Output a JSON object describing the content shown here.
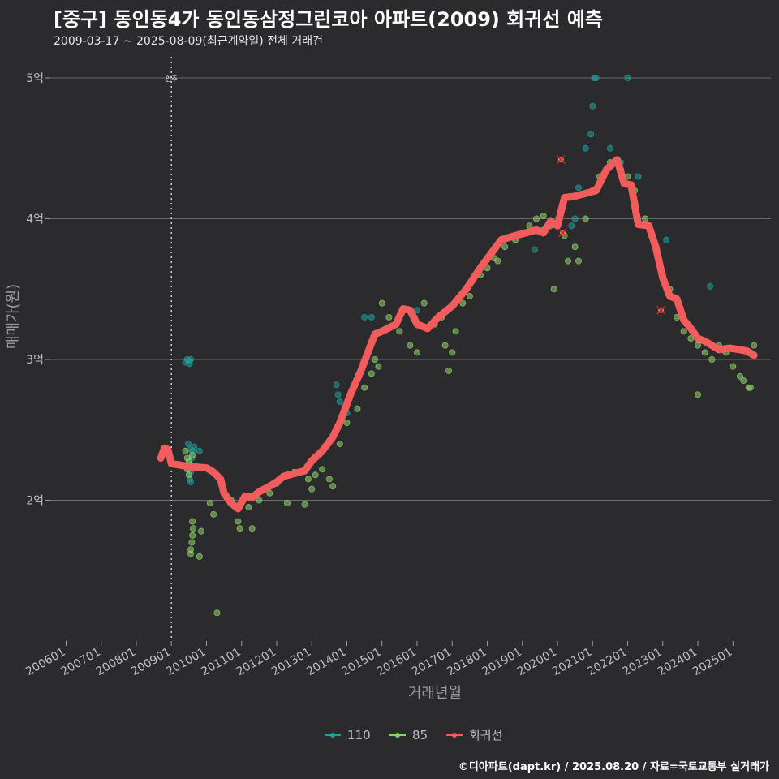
{
  "header": {
    "title": "[중구] 동인동4가 동인동삼정그린코아 아파트(2009) 회귀선 예측",
    "subtitle": "2009-03-17 ~ 2025-08-09(최근계약일) 전체 거래건"
  },
  "footer": {
    "credit": "©디아파트(dapt.kr) / 2025.08.20 / 자료=국토교통부 실거래가"
  },
  "colors": {
    "background": "#2b2b2d",
    "grid": "#6b6b6b",
    "s110": "#1f9e9a",
    "s85": "#8fd16a",
    "regression": "#f25c5c",
    "text": "#bdbdbd"
  },
  "chart_data": {
    "type": "scatter",
    "xlabel": "거래년월",
    "ylabel": "매매가(원)",
    "x_ticks": [
      "200601",
      "200701",
      "200801",
      "200901",
      "201001",
      "201101",
      "201201",
      "201301",
      "201401",
      "201501",
      "201601",
      "201701",
      "201801",
      "201901",
      "202001",
      "202101",
      "202201",
      "202301",
      "202401",
      "202501"
    ],
    "y_ticks": [
      {
        "value": 2,
        "label": "2억"
      },
      {
        "value": 3,
        "label": "3억"
      },
      {
        "value": 4,
        "label": "4억"
      },
      {
        "value": 5,
        "label": "5억"
      }
    ],
    "ylim": [
      1.0,
      5.15
    ],
    "xlim": [
      2005.55,
      2026.08
    ],
    "move_in_marker": {
      "x": 2009.0,
      "label": "입주"
    },
    "legend": {
      "position": "bottom",
      "items": [
        "110",
        "85",
        "회귀선"
      ]
    },
    "series": [
      {
        "name": "110",
        "color": "#1f9e9a",
        "points": [
          [
            2009.4,
            2.98
          ],
          [
            2009.45,
            3.0
          ],
          [
            2009.5,
            2.99
          ],
          [
            2009.55,
            3.0
          ],
          [
            2009.52,
            2.97
          ],
          [
            2009.48,
            2.4
          ],
          [
            2009.55,
            2.36
          ],
          [
            2009.6,
            2.35
          ],
          [
            2009.5,
            2.25
          ],
          [
            2009.55,
            2.2
          ],
          [
            2009.52,
            2.15
          ],
          [
            2009.55,
            2.13
          ],
          [
            2009.58,
            2.3
          ],
          [
            2009.8,
            2.35
          ],
          [
            2009.65,
            2.38
          ],
          [
            2013.7,
            2.82
          ],
          [
            2013.75,
            2.75
          ],
          [
            2013.8,
            2.7
          ],
          [
            2014.0,
            2.62
          ],
          [
            2014.5,
            3.3
          ],
          [
            2014.7,
            3.3
          ],
          [
            2016.0,
            3.35
          ],
          [
            2019.35,
            3.78
          ],
          [
            2020.4,
            3.95
          ],
          [
            2020.6,
            4.22
          ],
          [
            2020.8,
            4.5
          ],
          [
            2020.95,
            4.6
          ],
          [
            2021.0,
            4.8
          ],
          [
            2021.05,
            5.0
          ],
          [
            2021.1,
            5.0
          ],
          [
            2022.0,
            5.0
          ],
          [
            2021.5,
            4.5
          ],
          [
            2023.1,
            3.85
          ],
          [
            2024.35,
            3.52
          ],
          [
            2023.5,
            3.35
          ],
          [
            2022.3,
            4.3
          ],
          [
            2020.5,
            4.0
          ],
          [
            2021.8,
            4.4
          ]
        ]
      },
      {
        "name": "85",
        "color": "#8fd16a",
        "points": [
          [
            2009.4,
            2.35
          ],
          [
            2009.45,
            2.3
          ],
          [
            2009.5,
            2.28
          ],
          [
            2009.55,
            2.25
          ],
          [
            2009.6,
            2.32
          ],
          [
            2009.45,
            2.22
          ],
          [
            2009.5,
            2.18
          ],
          [
            2009.6,
            1.85
          ],
          [
            2009.62,
            1.8
          ],
          [
            2009.6,
            1.75
          ],
          [
            2009.58,
            1.7
          ],
          [
            2009.55,
            1.65
          ],
          [
            2009.55,
            1.62
          ],
          [
            2009.8,
            1.6
          ],
          [
            2009.85,
            1.78
          ],
          [
            2010.2,
            1.9
          ],
          [
            2010.3,
            1.2
          ],
          [
            2010.1,
            1.98
          ],
          [
            2010.7,
            2.0
          ],
          [
            2010.9,
            1.85
          ],
          [
            2010.95,
            1.8
          ],
          [
            2011.2,
            1.95
          ],
          [
            2011.3,
            1.8
          ],
          [
            2011.5,
            2.0
          ],
          [
            2011.8,
            2.05
          ],
          [
            2012.0,
            2.12
          ],
          [
            2012.3,
            1.98
          ],
          [
            2012.5,
            2.2
          ],
          [
            2012.8,
            1.97
          ],
          [
            2012.9,
            2.15
          ],
          [
            2013.0,
            2.08
          ],
          [
            2013.1,
            2.18
          ],
          [
            2013.3,
            2.22
          ],
          [
            2013.5,
            2.15
          ],
          [
            2013.6,
            2.1
          ],
          [
            2013.8,
            2.4
          ],
          [
            2014.0,
            2.55
          ],
          [
            2014.3,
            2.65
          ],
          [
            2014.5,
            2.8
          ],
          [
            2014.7,
            2.9
          ],
          [
            2014.8,
            3.0
          ],
          [
            2014.9,
            2.95
          ],
          [
            2015.0,
            3.4
          ],
          [
            2015.2,
            3.3
          ],
          [
            2015.5,
            3.2
          ],
          [
            2015.8,
            3.1
          ],
          [
            2016.0,
            3.05
          ],
          [
            2016.2,
            3.4
          ],
          [
            2016.5,
            3.25
          ],
          [
            2016.7,
            3.3
          ],
          [
            2016.8,
            3.1
          ],
          [
            2017.0,
            3.05
          ],
          [
            2017.1,
            3.2
          ],
          [
            2017.3,
            3.4
          ],
          [
            2017.5,
            3.45
          ],
          [
            2017.8,
            3.6
          ],
          [
            2018.0,
            3.65
          ],
          [
            2018.3,
            3.7
          ],
          [
            2018.5,
            3.8
          ],
          [
            2018.8,
            3.85
          ],
          [
            2019.0,
            3.9
          ],
          [
            2019.2,
            3.95
          ],
          [
            2019.4,
            4.0
          ],
          [
            2019.6,
            4.02
          ],
          [
            2019.8,
            3.95
          ],
          [
            2019.9,
            3.5
          ],
          [
            2020.2,
            3.88
          ],
          [
            2020.3,
            3.7
          ],
          [
            2020.5,
            3.8
          ],
          [
            2020.6,
            3.7
          ],
          [
            2020.8,
            4.0
          ],
          [
            2021.0,
            4.2
          ],
          [
            2021.2,
            4.3
          ],
          [
            2021.5,
            4.4
          ],
          [
            2021.8,
            4.35
          ],
          [
            2022.0,
            4.3
          ],
          [
            2022.2,
            4.2
          ],
          [
            2022.5,
            4.0
          ],
          [
            2022.8,
            3.8
          ],
          [
            2023.0,
            3.6
          ],
          [
            2023.2,
            3.5
          ],
          [
            2023.4,
            3.3
          ],
          [
            2023.6,
            3.2
          ],
          [
            2023.8,
            3.15
          ],
          [
            2024.0,
            3.1
          ],
          [
            2024.2,
            3.05
          ],
          [
            2024.4,
            3.0
          ],
          [
            2024.6,
            3.1
          ],
          [
            2024.8,
            3.05
          ],
          [
            2025.0,
            2.95
          ],
          [
            2025.2,
            2.88
          ],
          [
            2025.3,
            2.85
          ],
          [
            2025.5,
            2.8
          ],
          [
            2025.6,
            3.1
          ],
          [
            2024.0,
            2.75
          ],
          [
            2025.45,
            2.8
          ],
          [
            2019.6,
            3.92
          ],
          [
            2018.2,
            3.72
          ],
          [
            2016.9,
            2.92
          ]
        ]
      },
      {
        "name": "회귀선",
        "color": "#f25c5c",
        "points": [
          [
            2008.7,
            2.3
          ],
          [
            2008.8,
            2.37
          ],
          [
            2008.9,
            2.36
          ],
          [
            2009.0,
            2.26
          ],
          [
            2009.5,
            2.24
          ],
          [
            2010.0,
            2.23
          ],
          [
            2010.2,
            2.2
          ],
          [
            2010.4,
            2.15
          ],
          [
            2010.5,
            2.05
          ],
          [
            2010.7,
            1.98
          ],
          [
            2010.9,
            1.94
          ],
          [
            2011.1,
            2.03
          ],
          [
            2011.3,
            2.02
          ],
          [
            2011.5,
            2.06
          ],
          [
            2011.8,
            2.1
          ],
          [
            2012.0,
            2.13
          ],
          [
            2012.2,
            2.17
          ],
          [
            2012.5,
            2.19
          ],
          [
            2012.8,
            2.21
          ],
          [
            2013.0,
            2.28
          ],
          [
            2013.3,
            2.35
          ],
          [
            2013.6,
            2.45
          ],
          [
            2013.8,
            2.55
          ],
          [
            2014.1,
            2.75
          ],
          [
            2014.4,
            2.92
          ],
          [
            2014.6,
            3.05
          ],
          [
            2014.8,
            3.18
          ],
          [
            2015.0,
            3.2
          ],
          [
            2015.4,
            3.25
          ],
          [
            2015.6,
            3.36
          ],
          [
            2015.8,
            3.35
          ],
          [
            2016.0,
            3.25
          ],
          [
            2016.3,
            3.22
          ],
          [
            2016.6,
            3.3
          ],
          [
            2017.0,
            3.38
          ],
          [
            2017.4,
            3.5
          ],
          [
            2017.8,
            3.65
          ],
          [
            2018.1,
            3.75
          ],
          [
            2018.4,
            3.85
          ],
          [
            2018.8,
            3.88
          ],
          [
            2019.1,
            3.9
          ],
          [
            2019.4,
            3.92
          ],
          [
            2019.6,
            3.9
          ],
          [
            2019.8,
            3.98
          ],
          [
            2020.0,
            3.95
          ],
          [
            2020.2,
            4.15
          ],
          [
            2020.5,
            4.16
          ],
          [
            2020.8,
            4.18
          ],
          [
            2021.1,
            4.2
          ],
          [
            2021.4,
            4.35
          ],
          [
            2021.7,
            4.42
          ],
          [
            2021.9,
            4.25
          ],
          [
            2022.1,
            4.24
          ],
          [
            2022.3,
            3.96
          ],
          [
            2022.6,
            3.95
          ],
          [
            2022.8,
            3.8
          ],
          [
            2023.0,
            3.58
          ],
          [
            2023.2,
            3.45
          ],
          [
            2023.4,
            3.43
          ],
          [
            2023.6,
            3.28
          ],
          [
            2023.8,
            3.22
          ],
          [
            2024.0,
            3.15
          ],
          [
            2024.2,
            3.13
          ],
          [
            2024.4,
            3.1
          ],
          [
            2024.6,
            3.07
          ],
          [
            2024.9,
            3.08
          ],
          [
            2025.2,
            3.07
          ],
          [
            2025.4,
            3.06
          ],
          [
            2025.6,
            3.03
          ]
        ]
      }
    ],
    "outliers": [
      [
        2020.1,
        4.42
      ],
      [
        2020.15,
        3.9
      ],
      [
        2022.95,
        3.35
      ]
    ]
  }
}
